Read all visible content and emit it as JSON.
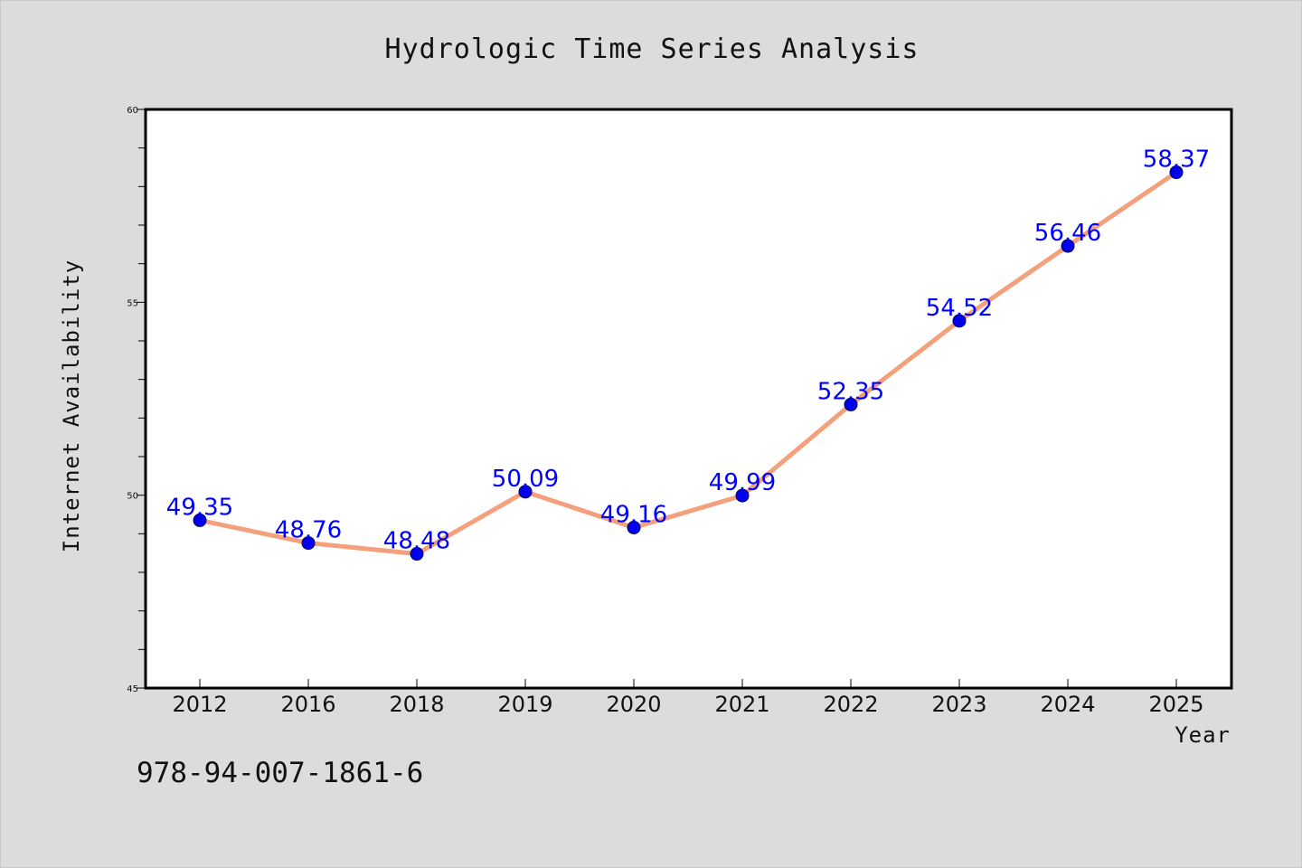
{
  "chart_data": {
    "type": "line",
    "title": "Hydrologic Time Series Analysis",
    "xlabel": "Year",
    "ylabel": "Internet Availability",
    "categories": [
      "2012",
      "2016",
      "2018",
      "2019",
      "2020",
      "2021",
      "2022",
      "2023",
      "2024",
      "2025"
    ],
    "series": [
      {
        "values": [
          49.35,
          48.76,
          48.48,
          50.09,
          49.16,
          49.99,
          52.35,
          54.52,
          56.46,
          58.37
        ],
        "data_labels": [
          "49.35",
          "48.76",
          "48.48",
          "50.09",
          "49.16",
          "49.99",
          "52.35",
          "54.52",
          "56.46",
          "58.37"
        ],
        "line_color": "#f4a07c",
        "marker_color": "#0000ee",
        "label_color": "#0000ff"
      }
    ],
    "ylim": [
      45,
      60
    ],
    "y_ticks": [
      "45",
      "50",
      "55",
      "60"
    ],
    "grid": false,
    "legend": "none"
  },
  "annotation": {
    "isbn": "978-94-007-1861-6"
  },
  "colors": {
    "background": "#dcdcdc",
    "plot_background": "#ffffff",
    "frame": "#000000"
  }
}
